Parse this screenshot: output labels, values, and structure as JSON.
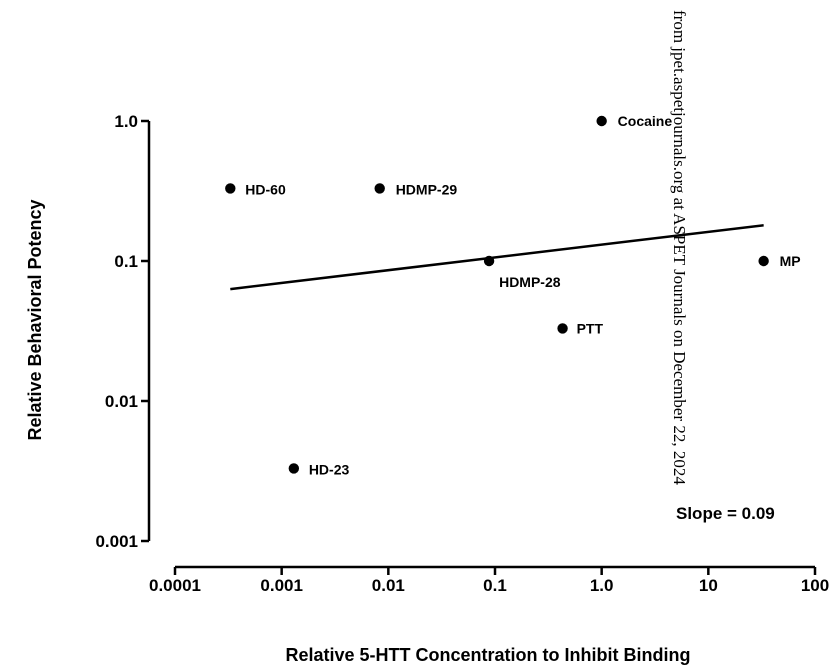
{
  "chart_data": {
    "type": "scatter",
    "xlabel": "Relative 5-HTT Concentration to Inhibit Binding",
    "ylabel": "Relative Behavioral Potency",
    "xscale": "log",
    "yscale": "log",
    "xlim": [
      0.0001,
      100
    ],
    "ylim": [
      0.001,
      1.0
    ],
    "xticks": [
      0.0001,
      0.001,
      0.01,
      0.1,
      1,
      10,
      100
    ],
    "xtick_labels": [
      "0.0001",
      "0.001",
      "0.01",
      "0.1",
      "1.0",
      "10",
      "100"
    ],
    "yticks": [
      0.001,
      0.01,
      0.1,
      1
    ],
    "ytick_labels": [
      "0.001",
      "0.01",
      "0.1",
      "1.0"
    ],
    "grid": false,
    "points": [
      {
        "label": "Cocaine",
        "x": 1.0,
        "y": 1.0
      },
      {
        "label": "HD-60",
        "x": 0.00033,
        "y": 0.33
      },
      {
        "label": "HDMP-29",
        "x": 0.0083,
        "y": 0.33
      },
      {
        "label": "HDMP-28",
        "x": 0.088,
        "y": 0.1
      },
      {
        "label": "MP",
        "x": 33,
        "y": 0.1
      },
      {
        "label": "PTT",
        "x": 0.43,
        "y": 0.033
      },
      {
        "label": "HD-23",
        "x": 0.0013,
        "y": 0.0033
      }
    ],
    "regression": {
      "x": [
        0.00033,
        33
      ],
      "y": [
        0.063,
        0.18
      ]
    },
    "annotations": {
      "slope": "Slope = 0.09"
    },
    "marker_color": "#000000"
  },
  "watermark": "from jpet.aspetjournals.org at ASPET Journals on December 22, 2024"
}
